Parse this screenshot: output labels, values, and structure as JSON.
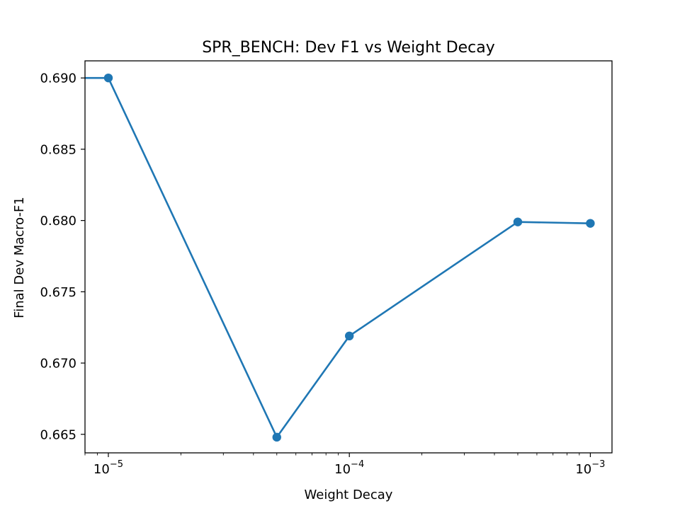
{
  "chart_data": {
    "type": "line",
    "title": "SPR_BENCH: Dev F1 vs Weight Decay",
    "xlabel": "Weight Decay",
    "ylabel": "Final Dev Macro-F1",
    "xscale": "log",
    "xlim": [
      8e-06,
      0.00123
    ],
    "ylim": [
      0.6637,
      0.6912
    ],
    "grid": false,
    "legend": false,
    "color": "#1f77b4",
    "x_ticks": [
      {
        "value": 1e-05,
        "base": "10",
        "exp": "−5"
      },
      {
        "value": 0.0001,
        "base": "10",
        "exp": "−4"
      },
      {
        "value": 0.001,
        "base": "10",
        "exp": "−3"
      }
    ],
    "y_ticks": [
      "0.665",
      "0.670",
      "0.675",
      "0.680",
      "0.685",
      "0.690"
    ],
    "lead_in": [
      0.0,
      0.69
    ],
    "series": [
      {
        "x": [
          1e-05,
          5e-05,
          0.0001,
          0.0005,
          0.001
        ],
        "values": [
          0.69,
          0.6648,
          0.6719,
          0.6799,
          0.6798
        ]
      }
    ]
  }
}
